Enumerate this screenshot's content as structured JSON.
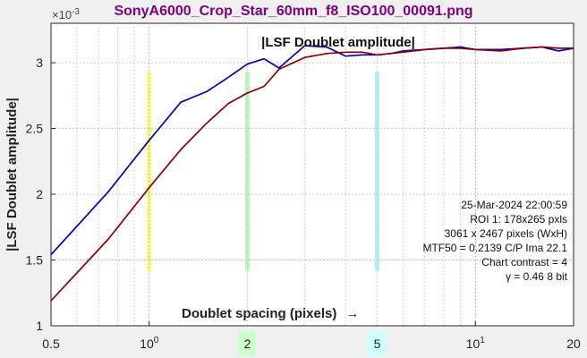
{
  "figure_title": "SonyA6000_Crop_Star_60mm_f8_ISO100_00091.png",
  "chart_data": {
    "type": "line",
    "title": "|LSF Doublet amplitude|",
    "xlabel": "Doublet spacing (pixels)",
    "xlabel_arrow": "→",
    "ylabel": "|LSF Doublet amplitude|",
    "x_scale": "log",
    "xlim": [
      0.5,
      20
    ],
    "ylim": [
      0.001,
      0.0033
    ],
    "y_exponent_label": "×10",
    "y_exponent": "-3",
    "y_ticks": [
      {
        "value": 0.001,
        "label": "1"
      },
      {
        "value": 0.0015,
        "label": "1.5"
      },
      {
        "value": 0.002,
        "label": "2"
      },
      {
        "value": 0.0025,
        "label": "2.5"
      },
      {
        "value": 0.003,
        "label": "3"
      }
    ],
    "x_ticks": [
      {
        "value": 0.5,
        "label": "0.5"
      },
      {
        "value": 1,
        "label": "10",
        "exp": "0"
      },
      {
        "value": 10,
        "label": "10",
        "exp": "1"
      },
      {
        "value": 20,
        "label": "20"
      }
    ],
    "x_highlight_labels": [
      {
        "value": 2,
        "label": "2",
        "color": "#ccffcc"
      },
      {
        "value": 5,
        "label": "5",
        "color": "#ccffff"
      }
    ],
    "bands": [
      {
        "x": 1,
        "color": "#ffff66",
        "ymin": 0.00142,
        "ymax": 0.00293
      },
      {
        "x": 2,
        "color": "#b3f5b3",
        "ymin": 0.00142,
        "ymax": 0.00293
      },
      {
        "x": 5,
        "color": "#a6f0f0",
        "ymin": 0.00142,
        "ymax": 0.00293
      }
    ],
    "grid": true,
    "series": [
      {
        "color": "#0000c0",
        "x": [
          0.5,
          0.75,
          1,
          1.25,
          1.5,
          1.75,
          2,
          2.25,
          2.5,
          3,
          3.5,
          4,
          4.5,
          5,
          5.5,
          6,
          7,
          8,
          9,
          10,
          12,
          14,
          16,
          18,
          20
        ],
        "y": [
          0.00154,
          0.00202,
          0.00241,
          0.0027,
          0.00278,
          0.00289,
          0.00299,
          0.00303,
          0.00296,
          0.00313,
          0.00312,
          0.00305,
          0.00306,
          0.00306,
          0.00307,
          0.00309,
          0.0031,
          0.00311,
          0.00312,
          0.0031,
          0.0031,
          0.00311,
          0.00312,
          0.00309,
          0.00311
        ]
      },
      {
        "color": "#8b0000",
        "x": [
          0.5,
          0.75,
          1,
          1.25,
          1.5,
          1.75,
          2,
          2.25,
          2.5,
          3,
          3.5,
          4,
          4.5,
          5,
          5.5,
          6,
          7,
          8,
          9,
          10,
          12,
          14,
          16,
          18,
          20
        ],
        "y": [
          0.00119,
          0.00166,
          0.00205,
          0.00234,
          0.00254,
          0.00269,
          0.00277,
          0.00282,
          0.00295,
          0.00304,
          0.00307,
          0.00308,
          0.00308,
          0.00306,
          0.00307,
          0.00308,
          0.0031,
          0.00311,
          0.00311,
          0.0031,
          0.00309,
          0.00311,
          0.00312,
          0.00311,
          0.00311
        ]
      }
    ],
    "annotations": [
      "25-Mar-2024 22:00:59",
      "ROI 1:  178x265 pxls",
      "3061 x 2467 pixels (WxH)",
      "MTF50 = 0.2139 C/P  Ima 22.1",
      "Chart contrast = 4",
      "γ = 0.46   8 bit"
    ]
  }
}
